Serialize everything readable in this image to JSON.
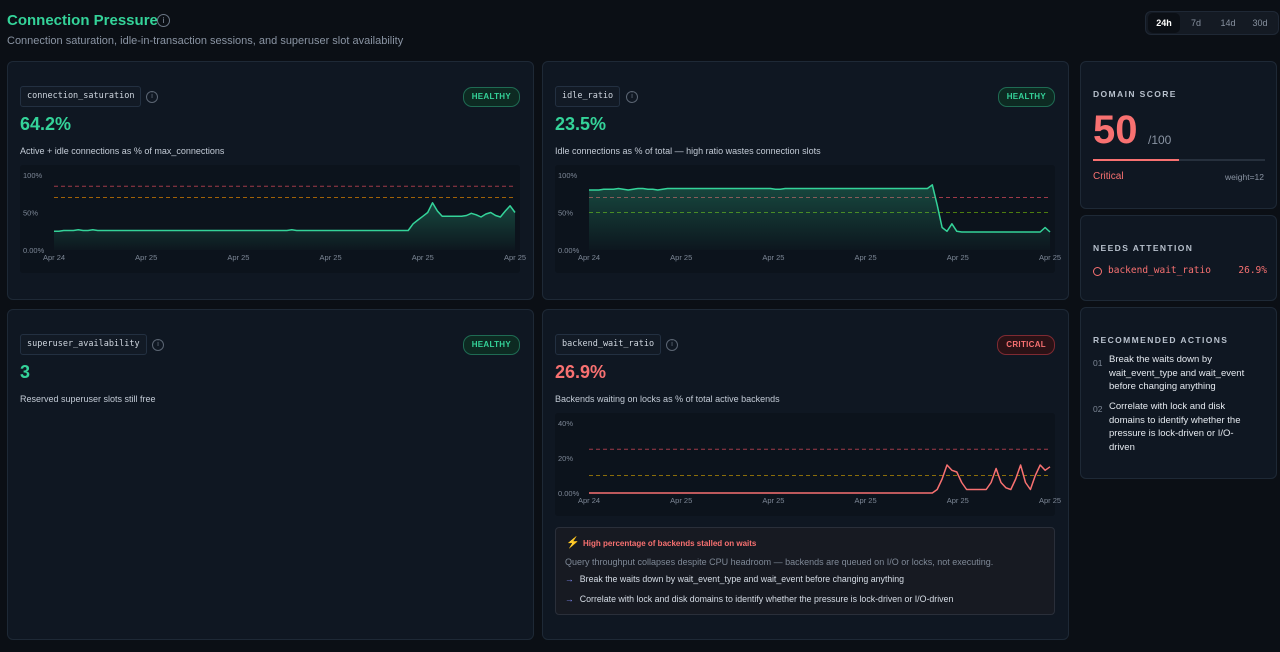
{
  "header": {
    "title": "Connection Pressure",
    "subtitle": "Connection saturation, idle-in-transaction sessions, and superuser slot availability",
    "ranges": [
      "24h",
      "7d",
      "14d",
      "30d"
    ],
    "active_range": "24h"
  },
  "colors": {
    "healthy": "#34d399",
    "critical": "#f87171",
    "threshold_warn": "#a16207",
    "threshold_crit": "#9f3a48",
    "threshold_ok": "#3f6212"
  },
  "cards": [
    {
      "metric": "connection_saturation",
      "value": "64.2%",
      "status": "HEALTHY",
      "description": "Active + idle connections as % of max_connections"
    },
    {
      "metric": "idle_ratio",
      "value": "23.5%",
      "status": "HEALTHY",
      "description": "Idle connections as % of total — high ratio wastes connection slots"
    },
    {
      "metric": "superuser_availability",
      "value": "3",
      "status": "HEALTHY",
      "description": "Reserved superuser slots still free"
    },
    {
      "metric": "backend_wait_ratio",
      "value": "26.9%",
      "status": "CRITICAL",
      "description": "Backends waiting on locks as % of total active backends"
    }
  ],
  "alert": {
    "title": "High percentage of backends stalled on waits",
    "text": "Query throughput collapses despite CPU headroom — backends are queued on I/O or locks, not executing.",
    "actions": [
      "Break the waits down by wait_event_type and wait_event before changing anything",
      "Correlate with lock and disk domains to identify whether the pressure is lock-driven or I/O-driven"
    ]
  },
  "domain_score": {
    "label": "DOMAIN SCORE",
    "value": "50",
    "max": "/100",
    "fraction": 0.5,
    "status": "Critical",
    "weight": "weight=12"
  },
  "needs_attention": {
    "label": "NEEDS ATTENTION",
    "items": [
      {
        "name": "backend_wait_ratio",
        "value": "26.9%"
      }
    ]
  },
  "recommended_actions": {
    "label": "RECOMMENDED ACTIONS",
    "items": [
      {
        "num": "01",
        "text": "Break the waits down by wait_event_type and wait_event before changing anything"
      },
      {
        "num": "02",
        "text": "Correlate with lock and disk domains to identify whether the pressure is lock-driven or I/O-driven"
      }
    ]
  },
  "chart_data": [
    {
      "type": "area",
      "series": [
        {
          "values": [
            25,
            25,
            26,
            26,
            26,
            27,
            26,
            26,
            27,
            26,
            26,
            26,
            26,
            26,
            26,
            26,
            26,
            26,
            26,
            26,
            26,
            26,
            26,
            26,
            26,
            26,
            26,
            26,
            26,
            26,
            26,
            26,
            26,
            26,
            26,
            26,
            26,
            26,
            26,
            26,
            26,
            26,
            26,
            26,
            26,
            26,
            26,
            26,
            26,
            27,
            26,
            26,
            26,
            26,
            26,
            26,
            26,
            26,
            26,
            26,
            26,
            26,
            26,
            26,
            26,
            26,
            26,
            26,
            26,
            26,
            26,
            26,
            26,
            26,
            35,
            40,
            45,
            50,
            63,
            52,
            45,
            45,
            45,
            45,
            45,
            46,
            49,
            47,
            44,
            48,
            50,
            46,
            44,
            52,
            59,
            50
          ]
        }
      ],
      "x_ticks": [
        "Apr 24",
        "Apr 25",
        "Apr 25",
        "Apr 25",
        "Apr 25",
        "Apr 25"
      ],
      "y_ticks": [
        "100%",
        "50%",
        "0.00%"
      ],
      "ylim": [
        0,
        100
      ],
      "thresholds": [
        85,
        70
      ]
    },
    {
      "type": "area",
      "series": [
        {
          "values": [
            80,
            80,
            80,
            81,
            81,
            81,
            82,
            81,
            80,
            81,
            82,
            82,
            81,
            81,
            80,
            81,
            82,
            82,
            82,
            82,
            82,
            82,
            82,
            82,
            82,
            82,
            82,
            82,
            82,
            82,
            82,
            82,
            82,
            82,
            82,
            82,
            82,
            82,
            81,
            81,
            82,
            82,
            82,
            82,
            82,
            82,
            82,
            82,
            82,
            82,
            82,
            82,
            82,
            82,
            82,
            82,
            82,
            82,
            82,
            82,
            82,
            82,
            82,
            82,
            82,
            82,
            82,
            82,
            82,
            82,
            87,
            60,
            30,
            25,
            35,
            25,
            24,
            24,
            24,
            24,
            24,
            24,
            24,
            24,
            24,
            24,
            24,
            24,
            24,
            24,
            24,
            24,
            24,
            30,
            24
          ]
        }
      ],
      "x_ticks": [
        "Apr 24",
        "Apr 25",
        "Apr 25",
        "Apr 25",
        "Apr 25",
        "Apr 25"
      ],
      "y_ticks": [
        "100%",
        "50%",
        "0.00%"
      ],
      "ylim": [
        0,
        100
      ],
      "thresholds": [
        70,
        50
      ]
    },
    {
      "type": "line",
      "series": [
        {
          "values": [
            0,
            0,
            0,
            0,
            0,
            0,
            0,
            0,
            0,
            0,
            0,
            0,
            0,
            0,
            0,
            0,
            0,
            0,
            0,
            0,
            0,
            0,
            0,
            0,
            0,
            0,
            0,
            0,
            0,
            0,
            0,
            0,
            0,
            0,
            0,
            0,
            0,
            0,
            0,
            0,
            0,
            0,
            0,
            0,
            0,
            0,
            0,
            0,
            0,
            0,
            0,
            0,
            0,
            0,
            0,
            0,
            0,
            0,
            0,
            0,
            0,
            0,
            0,
            0,
            0,
            0,
            0,
            0,
            0,
            0,
            0,
            2,
            8,
            16,
            13,
            12,
            6,
            2,
            2,
            2,
            2,
            2,
            6,
            14,
            6,
            3,
            2,
            8,
            16,
            6,
            2,
            10,
            16,
            13,
            15
          ]
        }
      ],
      "x_ticks": [
        "Apr 24",
        "Apr 25",
        "Apr 25",
        "Apr 25",
        "Apr 25",
        "Apr 25"
      ],
      "y_ticks": [
        "40%",
        "20%",
        "0.00%"
      ],
      "ylim": [
        0,
        40
      ],
      "thresholds": [
        25,
        10
      ]
    }
  ]
}
